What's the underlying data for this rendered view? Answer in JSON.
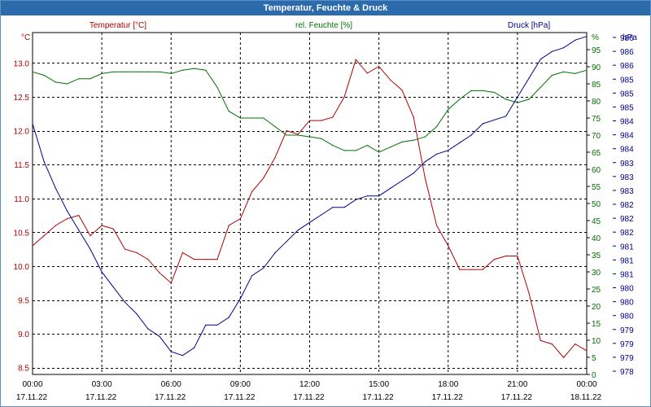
{
  "window": {
    "title": "Temperatur, Feuchte & Druck"
  },
  "chart_data": {
    "type": "line",
    "title": "Temperatur, Feuchte & Druck",
    "grid": true,
    "x_ticks": [
      {
        "time": "00:00",
        "date": "17.11.22"
      },
      {
        "time": "03:00",
        "date": "17.11.22"
      },
      {
        "time": "06:00",
        "date": "17.11.22"
      },
      {
        "time": "09:00",
        "date": "17.11.22"
      },
      {
        "time": "12:00",
        "date": "17.11.22"
      },
      {
        "time": "15:00",
        "date": "17.11.22"
      },
      {
        "time": "18:00",
        "date": "17.11.22"
      },
      {
        "time": "21:00",
        "date": "17.11.22"
      },
      {
        "time": "00:00",
        "date": "18.11.22"
      }
    ],
    "x_range": [
      "17.11.22 00:00",
      "18.11.22 00:00"
    ],
    "axes": {
      "temperature": {
        "label": "Temperatur [°C]",
        "unit": "°C",
        "color": "#b00000",
        "ylim": [
          8.4,
          13.45
        ],
        "ticks": [
          "8.5",
          "9.0",
          "9.5",
          "10.0",
          "10.5",
          "11.0",
          "11.5",
          "12.0",
          "12.5",
          "13.0"
        ]
      },
      "humidity": {
        "label": "rel. Feuchte [%]",
        "unit": "%",
        "color": "#007000",
        "ylim": [
          0,
          100
        ],
        "ticks": [
          "0",
          "5",
          "10",
          "15",
          "20",
          "25",
          "30",
          "35",
          "40",
          "45",
          "50",
          "55",
          "60",
          "65",
          "70",
          "75",
          "80",
          "85",
          "90",
          "95"
        ]
      },
      "pressure": {
        "label": "Druck [hPa]",
        "unit": "hPa",
        "color": "#00008c",
        "ylim": [
          978,
          987
        ],
        "ticks": [
          "978",
          "979",
          "979",
          "979",
          "980",
          "980",
          "980",
          "981",
          "981",
          "981",
          "982",
          "982",
          "982",
          "983",
          "983",
          "983",
          "984",
          "984",
          "984",
          "985",
          "985",
          "985",
          "986",
          "986",
          "986"
        ]
      }
    },
    "series": [
      {
        "name": "Temperatur [°C]",
        "axis": "temperature",
        "color": "#b00000",
        "x": [
          "17.11.22 00:00",
          "17.11.22 00:30",
          "17.11.22 01:00",
          "17.11.22 01:30",
          "17.11.22 02:00",
          "17.11.22 02:30",
          "17.11.22 03:00",
          "17.11.22 03:30",
          "17.11.22 04:00",
          "17.11.22 04:30",
          "17.11.22 05:00",
          "17.11.22 05:30",
          "17.11.22 06:00",
          "17.11.22 06:30",
          "17.11.22 07:00",
          "17.11.22 07:30",
          "17.11.22 08:00",
          "17.11.22 08:30",
          "17.11.22 09:00",
          "17.11.22 09:30",
          "17.11.22 10:00",
          "17.11.22 10:30",
          "17.11.22 11:00",
          "17.11.22 11:30",
          "17.11.22 12:00",
          "17.11.22 12:30",
          "17.11.22 13:00",
          "17.11.22 13:30",
          "17.11.22 14:00",
          "17.11.22 14:30",
          "17.11.22 15:00",
          "17.11.22 15:30",
          "17.11.22 16:00",
          "17.11.22 16:30",
          "17.11.22 17:00",
          "17.11.22 17:30",
          "17.11.22 18:00",
          "17.11.22 18:30",
          "17.11.22 19:00",
          "17.11.22 19:30",
          "17.11.22 20:00",
          "17.11.22 20:30",
          "17.11.22 21:00",
          "17.11.22 21:30",
          "17.11.22 22:00",
          "17.11.22 22:30",
          "17.11.22 23:00",
          "17.11.22 23:30",
          "18.11.22 00:00"
        ],
        "values": [
          10.3,
          10.45,
          10.6,
          10.7,
          10.75,
          10.45,
          10.6,
          10.55,
          10.25,
          10.2,
          10.1,
          9.9,
          9.75,
          10.2,
          10.1,
          10.1,
          10.1,
          10.6,
          10.7,
          11.1,
          11.3,
          11.6,
          12.0,
          11.95,
          12.15,
          12.15,
          12.2,
          12.5,
          13.05,
          12.85,
          12.95,
          12.75,
          12.6,
          12.2,
          11.3,
          10.6,
          10.3,
          9.95,
          9.95,
          9.95,
          10.1,
          10.15,
          10.15,
          9.6,
          8.9,
          8.85,
          8.65,
          8.85,
          8.75
        ]
      },
      {
        "name": "rel. Feuchte [%]",
        "axis": "humidity",
        "color": "#007000",
        "x": [
          "17.11.22 00:00",
          "17.11.22 00:30",
          "17.11.22 01:00",
          "17.11.22 01:30",
          "17.11.22 02:00",
          "17.11.22 02:30",
          "17.11.22 03:00",
          "17.11.22 03:30",
          "17.11.22 04:00",
          "17.11.22 04:30",
          "17.11.22 05:00",
          "17.11.22 05:30",
          "17.11.22 06:00",
          "17.11.22 06:30",
          "17.11.22 07:00",
          "17.11.22 07:30",
          "17.11.22 08:00",
          "17.11.22 08:30",
          "17.11.22 09:00",
          "17.11.22 09:30",
          "17.11.22 10:00",
          "17.11.22 10:30",
          "17.11.22 11:00",
          "17.11.22 11:30",
          "17.11.22 12:00",
          "17.11.22 12:30",
          "17.11.22 13:00",
          "17.11.22 13:30",
          "17.11.22 14:00",
          "17.11.22 14:30",
          "17.11.22 15:00",
          "17.11.22 15:30",
          "17.11.22 16:00",
          "17.11.22 16:30",
          "17.11.22 17:00",
          "17.11.22 17:30",
          "17.11.22 18:00",
          "17.11.22 18:30",
          "17.11.22 19:00",
          "17.11.22 19:30",
          "17.11.22 20:00",
          "17.11.22 20:30",
          "17.11.22 21:00",
          "17.11.22 21:30",
          "17.11.22 22:00",
          "17.11.22 22:30",
          "17.11.22 23:00",
          "17.11.22 23:30",
          "18.11.22 00:00"
        ],
        "values": [
          88.5,
          87.5,
          85.5,
          85.0,
          86.5,
          86.5,
          88.0,
          88.5,
          88.5,
          88.5,
          88.5,
          88.5,
          88.0,
          89.0,
          89.5,
          89.0,
          84.0,
          77.0,
          75.0,
          75.0,
          75.0,
          72.5,
          70.0,
          70.0,
          69.5,
          69.0,
          67.0,
          65.5,
          65.5,
          67.0,
          65.0,
          66.5,
          68.0,
          68.5,
          69.5,
          72.5,
          77.5,
          80.5,
          83.0,
          83.0,
          82.5,
          80.5,
          79.5,
          80.5,
          84.0,
          87.5,
          88.5,
          88.0,
          89.0
        ]
      },
      {
        "name": "Druck [hPa]",
        "axis": "pressure",
        "color": "#00008c",
        "x": [
          "17.11.22 00:00",
          "17.11.22 00:30",
          "17.11.22 01:00",
          "17.11.22 01:30",
          "17.11.22 02:00",
          "17.11.22 02:30",
          "17.11.22 03:00",
          "17.11.22 03:30",
          "17.11.22 04:00",
          "17.11.22 04:30",
          "17.11.22 05:00",
          "17.11.22 05:30",
          "17.11.22 06:00",
          "17.11.22 06:30",
          "17.11.22 07:00",
          "17.11.22 07:30",
          "17.11.22 08:00",
          "17.11.22 08:30",
          "17.11.22 09:00",
          "17.11.22 09:30",
          "17.11.22 10:00",
          "17.11.22 10:30",
          "17.11.22 11:00",
          "17.11.22 11:30",
          "17.11.22 12:00",
          "17.11.22 12:30",
          "17.11.22 13:00",
          "17.11.22 13:30",
          "17.11.22 14:00",
          "17.11.22 14:30",
          "17.11.22 15:00",
          "17.11.22 15:30",
          "17.11.22 16:00",
          "17.11.22 16:30",
          "17.11.22 17:00",
          "17.11.22 17:30",
          "17.11.22 18:00",
          "17.11.22 18:30",
          "17.11.22 19:00",
          "17.11.22 19:30",
          "17.11.22 20:00",
          "17.11.22 20:30",
          "17.11.22 21:00",
          "17.11.22 21:30",
          "17.11.22 22:00",
          "17.11.22 22:30",
          "17.11.22 23:00",
          "17.11.22 23:30",
          "18.11.22 00:00"
        ],
        "values": [
          984.6,
          983.6,
          982.9,
          982.3,
          981.8,
          981.3,
          980.7,
          980.3,
          979.9,
          979.6,
          979.2,
          979.0,
          978.6,
          978.5,
          978.7,
          979.3,
          979.3,
          979.5,
          980.0,
          980.6,
          980.8,
          981.2,
          981.5,
          981.8,
          982.0,
          982.2,
          982.4,
          982.4,
          982.6,
          982.7,
          982.7,
          982.9,
          983.1,
          983.3,
          983.6,
          983.8,
          983.9,
          984.1,
          984.3,
          984.6,
          984.7,
          984.8,
          985.3,
          985.8,
          986.3,
          986.5,
          986.6,
          986.8,
          986.9
        ]
      }
    ]
  }
}
